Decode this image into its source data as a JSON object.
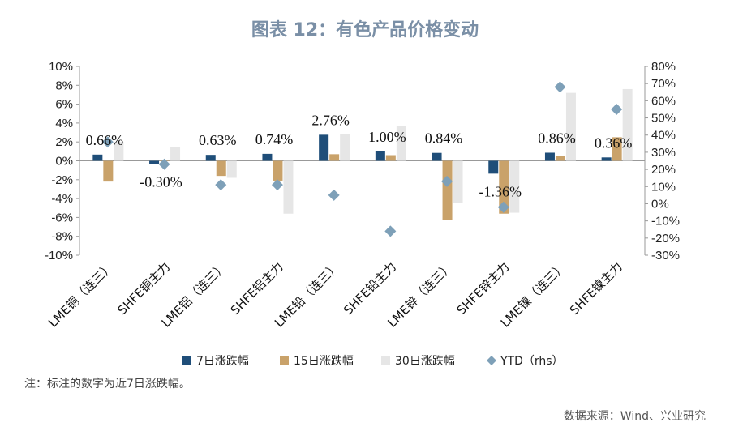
{
  "chart_data": {
    "type": "bar",
    "title": "图表 12：有色产品价格变动",
    "categories": [
      "LME铜（连三）",
      "SHFE铜主力",
      "LME铝（连三）",
      "SHFE铝主力",
      "LME铅（连三）",
      "SHFE铅主力",
      "LME锌（连三）",
      "SHFE锌主力",
      "LME镍（连三）",
      "SHFE镍主力"
    ],
    "series": [
      {
        "name": "7日涨跌幅",
        "color": "#1f4e79",
        "axis": "left",
        "values": [
          0.66,
          -0.3,
          0.63,
          0.74,
          2.76,
          1.0,
          0.84,
          -1.36,
          0.86,
          0.36
        ]
      },
      {
        "name": "15日涨跌幅",
        "color": "#c9a26a",
        "axis": "left",
        "values": [
          -2.2,
          0.1,
          -1.6,
          -2.1,
          0.7,
          0.6,
          -6.3,
          -5.6,
          0.5,
          2.5
        ]
      },
      {
        "name": "30日涨跌幅",
        "color": "#e6e6e6",
        "axis": "left",
        "values": [
          2.0,
          1.5,
          -1.8,
          -5.6,
          2.8,
          3.7,
          -4.5,
          -5.5,
          7.2,
          7.6
        ]
      },
      {
        "name": "YTD（rhs）",
        "color": "#7ea0b8",
        "axis": "right",
        "type": "scatter",
        "values": [
          36,
          23,
          11,
          11,
          5,
          -16,
          13,
          -2,
          68,
          55
        ]
      }
    ],
    "data_labels": [
      "0.66%",
      "-0.30%",
      "0.63%",
      "0.74%",
      "2.76%",
      "1.00%",
      "0.84%",
      "-1.36%",
      "0.86%",
      "0.36%"
    ],
    "y_left": {
      "ylim": [
        -10,
        10
      ],
      "ticks": [
        10,
        8,
        6,
        4,
        2,
        0,
        -2,
        -4,
        -6,
        -8,
        -10
      ],
      "tick_labels": [
        "10%",
        "8%",
        "6%",
        "4%",
        "2%",
        "0%",
        "-2%",
        "-4%",
        "-6%",
        "-8%",
        "-10%"
      ]
    },
    "y_right": {
      "ylim": [
        -30,
        80
      ],
      "ticks": [
        80,
        70,
        60,
        50,
        40,
        30,
        20,
        10,
        0,
        -10,
        -20,
        -30
      ],
      "tick_labels": [
        "80%",
        "70%",
        "60%",
        "50%",
        "40%",
        "30%",
        "20%",
        "10%",
        "0%",
        "-10%",
        "-20%",
        "-30%"
      ]
    },
    "legend_position": "bottom",
    "note": "注：标注的数字为近7日涨跌幅。",
    "source": "数据来源：Wind、兴业研究"
  }
}
